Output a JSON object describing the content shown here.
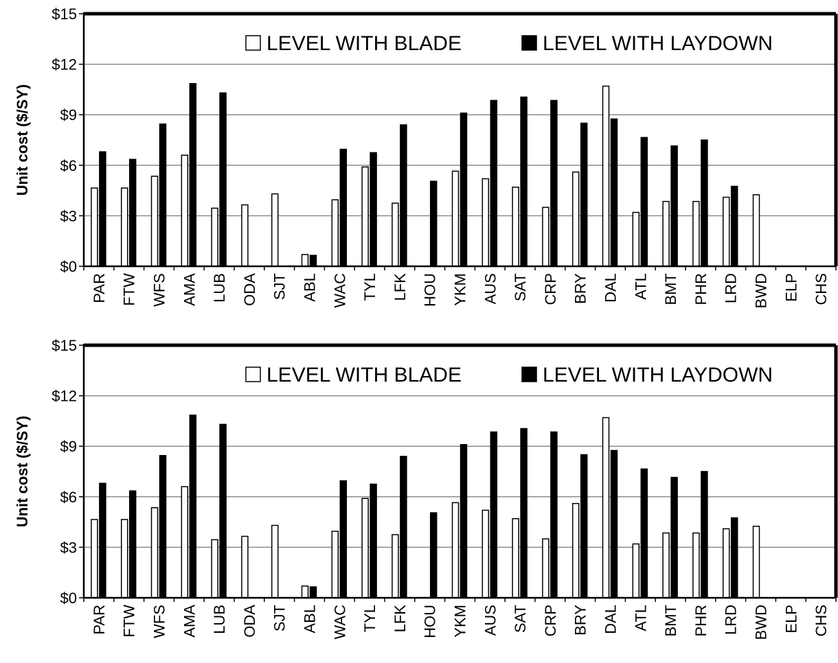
{
  "chart_data": [
    {
      "type": "bar",
      "ylabel": "Unit cost ($/SY)",
      "ylim": [
        0,
        15
      ],
      "yticks": [
        "$0",
        "$3",
        "$6",
        "$9",
        "$12",
        "$15"
      ],
      "grid": true,
      "legend_position": "top",
      "categories": [
        "PAR",
        "FTW",
        "WFS",
        "AMA",
        "LUB",
        "ODA",
        "SJT",
        "ABL",
        "WAC",
        "TYL",
        "LFK",
        "HOU",
        "YKM",
        "AUS",
        "SAT",
        "CRP",
        "BRY",
        "DAL",
        "ATL",
        "BMT",
        "PHR",
        "LRD",
        "BWD",
        "ELP",
        "CHS"
      ],
      "series": [
        {
          "name": "LEVEL WITH BLADE",
          "color": "#ffffff",
          "values": [
            4.65,
            4.65,
            5.35,
            6.6,
            3.45,
            3.65,
            4.3,
            0.7,
            3.95,
            5.9,
            3.75,
            null,
            5.65,
            5.2,
            4.7,
            3.5,
            5.6,
            10.7,
            3.2,
            3.85,
            3.85,
            4.1,
            4.25,
            null,
            null
          ]
        },
        {
          "name": "LEVEL WITH LAYDOWN",
          "color": "#000000",
          "values": [
            6.8,
            6.35,
            8.45,
            10.85,
            10.3,
            null,
            null,
            0.65,
            6.95,
            6.75,
            8.4,
            5.05,
            9.1,
            9.85,
            10.05,
            9.85,
            8.5,
            8.75,
            7.65,
            7.15,
            7.5,
            4.75,
            null,
            null,
            null
          ]
        }
      ]
    },
    {
      "type": "bar",
      "ylabel": "Unit cost ($/SY)",
      "ylim": [
        0,
        15
      ],
      "yticks": [
        "$0",
        "$3",
        "$6",
        "$9",
        "$12",
        "$15"
      ],
      "grid": true,
      "legend_position": "top",
      "categories": [
        "PAR",
        "FTW",
        "WFS",
        "AMA",
        "LUB",
        "ODA",
        "SJT",
        "ABL",
        "WAC",
        "TYL",
        "LFK",
        "HOU",
        "YKM",
        "AUS",
        "SAT",
        "CRP",
        "BRY",
        "DAL",
        "ATL",
        "BMT",
        "PHR",
        "LRD",
        "BWD",
        "ELP",
        "CHS"
      ],
      "series": [
        {
          "name": "LEVEL WITH BLADE",
          "color": "#ffffff",
          "values": [
            4.65,
            4.65,
            5.35,
            6.6,
            3.45,
            3.65,
            4.3,
            0.7,
            3.95,
            5.9,
            3.75,
            null,
            5.65,
            5.2,
            4.7,
            3.5,
            5.6,
            10.7,
            3.2,
            3.85,
            3.85,
            4.1,
            4.25,
            null,
            null
          ]
        },
        {
          "name": "LEVEL WITH LAYDOWN",
          "color": "#000000",
          "values": [
            6.8,
            6.35,
            8.45,
            10.85,
            10.3,
            null,
            null,
            0.65,
            6.95,
            6.75,
            8.4,
            5.05,
            9.1,
            9.85,
            10.05,
            9.85,
            8.5,
            8.75,
            7.65,
            7.15,
            7.5,
            4.75,
            null,
            null,
            null
          ]
        }
      ]
    }
  ]
}
